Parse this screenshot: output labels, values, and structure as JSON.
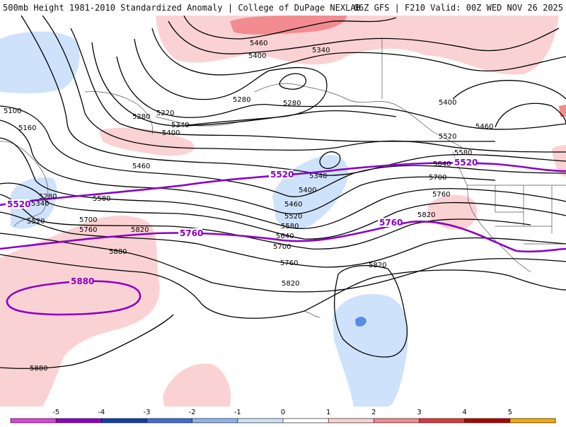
{
  "header": {
    "title_left": "500mb Height 1981-2010 Standardized Anomaly | College of DuPage NEXLAB",
    "title_right": "06Z GFS | F210 Valid: 00Z WED NOV 26 2025"
  },
  "colorbar": {
    "ticks": [
      "-5",
      "-4",
      "-3",
      "-2",
      "-1",
      "0",
      "1",
      "2",
      "3",
      "4",
      "5"
    ],
    "colors": [
      "#e040e0",
      "#9000c0",
      "#1040b0",
      "#3c6ee0",
      "#8fb4f0",
      "#cfe2fb",
      "#ffffff",
      "#fbd2d4",
      "#f48c92",
      "#e0383c",
      "#b00000",
      "#f8a800"
    ]
  },
  "contour_labels": {
    "black": [
      "5460",
      "5400",
      "5340",
      "5280",
      "5280",
      "5220",
      "5280",
      "5100",
      "5160",
      "5340",
      "5400",
      "5460",
      "5400",
      "5460",
      "5520",
      "5580",
      "5640",
      "5700",
      "5760",
      "5820",
      "5280",
      "5340",
      "5520",
      "5580",
      "5700",
      "5760",
      "5820",
      "5880",
      "5340",
      "5400",
      "5460",
      "5520",
      "5580",
      "5640",
      "5700",
      "5760",
      "5820",
      "5820",
      "5880"
    ],
    "purple": [
      "5520",
      "5520",
      "5520",
      "5760",
      "5760",
      "5880"
    ]
  },
  "colors": {
    "positive_light": "#fbd2d4",
    "positive_mid": "#f28c90",
    "negative_light": "#cfe2fb",
    "negative_mid": "#5a8ce6",
    "contour": "#000000",
    "highlight_contour": "#8a00c8"
  }
}
